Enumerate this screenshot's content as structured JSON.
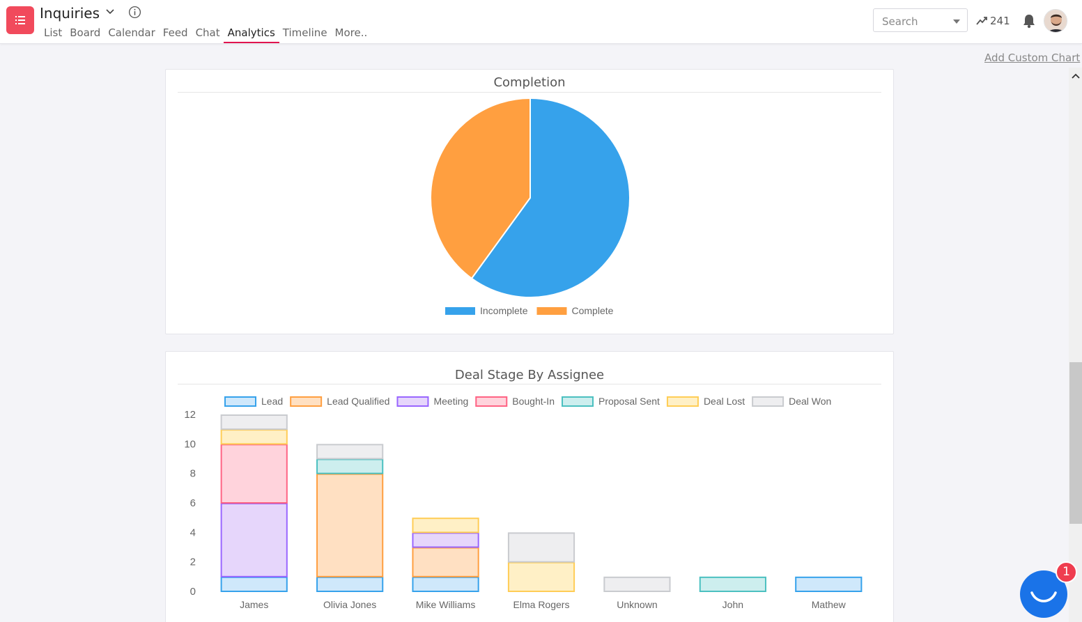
{
  "header": {
    "title": "Inquiries",
    "tabs": [
      {
        "label": "List"
      },
      {
        "label": "Board"
      },
      {
        "label": "Calendar"
      },
      {
        "label": "Feed"
      },
      {
        "label": "Chat"
      },
      {
        "label": "Analytics",
        "active": true
      },
      {
        "label": "Timeline"
      },
      {
        "label": "More.."
      }
    ],
    "search_placeholder": "Search",
    "trend_count": "241",
    "accent_color": "#f14a5c"
  },
  "actions": {
    "add_custom_chart": "Add Custom Chart"
  },
  "chat": {
    "badge_count": "1"
  },
  "chart_data": [
    {
      "type": "pie",
      "title": "Completion",
      "labels": [
        "Incomplete",
        "Complete"
      ],
      "values": [
        60,
        40
      ],
      "colors": [
        "#36a2eb",
        "#ff9f40"
      ],
      "legend": "bottom"
    },
    {
      "type": "bar",
      "stacked": true,
      "title": "Deal Stage By Assignee",
      "categories": [
        "James",
        "Olivia Jones",
        "Mike Williams",
        "Elma Rogers",
        "Unknown",
        "John",
        "Mathew"
      ],
      "series": [
        {
          "name": "Lead",
          "values": [
            1,
            1,
            1,
            0,
            0,
            0,
            1
          ],
          "fill": "#cfe8fb",
          "stroke": "#36a2eb"
        },
        {
          "name": "Lead Qualified",
          "values": [
            0,
            7,
            2,
            0,
            0,
            0,
            0
          ],
          "fill": "#ffe0c2",
          "stroke": "#ff9f40"
        },
        {
          "name": "Meeting",
          "values": [
            5,
            0,
            1,
            0,
            0,
            0,
            0
          ],
          "fill": "#e6d6fb",
          "stroke": "#9966ff"
        },
        {
          "name": "Bought-In",
          "values": [
            4,
            0,
            0,
            0,
            0,
            0,
            0
          ],
          "fill": "#ffd3dc",
          "stroke": "#ff6384"
        },
        {
          "name": "Proposal Sent",
          "values": [
            0,
            1,
            0,
            0,
            0,
            1,
            0
          ],
          "fill": "#cdeeee",
          "stroke": "#4bc0c0"
        },
        {
          "name": "Deal Lost",
          "values": [
            1,
            0,
            1,
            2,
            0,
            0,
            0
          ],
          "fill": "#fff0c6",
          "stroke": "#ffcd56"
        },
        {
          "name": "Deal Won",
          "values": [
            1,
            1,
            0,
            2,
            1,
            0,
            0
          ],
          "fill": "#eeeef0",
          "stroke": "#c9cbcf"
        }
      ],
      "yticks": [
        0,
        2,
        4,
        6,
        8,
        10,
        12
      ],
      "ylim": [
        0,
        12
      ],
      "legend": "top"
    }
  ]
}
